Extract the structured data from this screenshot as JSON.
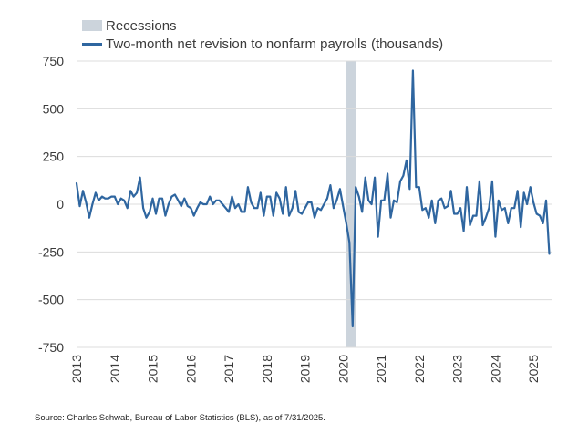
{
  "colors": {
    "series": "#2f66a0",
    "recession": "#ccd4dc",
    "grid": "#dcdcdc",
    "text": "#3b3b3b"
  },
  "source": "Source: Charles Schwab, Bureau of Labor Statistics (BLS), as of 7/31/2025.",
  "chart_data": {
    "type": "line",
    "legend": [
      {
        "name": "Recessions",
        "style": "shaded-band"
      },
      {
        "name": "Two-month net revision to nonfarm payrolls (thousands)",
        "style": "line"
      }
    ],
    "legend_position": "top-left",
    "ylim": [
      -750,
      750
    ],
    "yticks": [
      750,
      500,
      250,
      0,
      -250,
      -500,
      -750
    ],
    "ytick_labels": [
      "750",
      "500",
      "250",
      "0",
      "-250",
      "-500",
      "-750"
    ],
    "xlim": [
      2013,
      2025.5
    ],
    "xticks": [
      2013,
      2014,
      2015,
      2016,
      2017,
      2018,
      2019,
      2020,
      2021,
      2022,
      2023,
      2024,
      2025
    ],
    "xtick_labels": [
      "2013",
      "2014",
      "2015",
      "2016",
      "2017",
      "2018",
      "2019",
      "2020",
      "2021",
      "2022",
      "2023",
      "2024",
      "2025"
    ],
    "grid": "horizontal",
    "recessions": [
      {
        "start": 2020.08,
        "end": 2020.33
      }
    ],
    "series": [
      {
        "name": "Two-month net revision to nonfarm payrolls (thousands)",
        "x": [
          2013.0,
          2013.083,
          2013.167,
          2013.25,
          2013.333,
          2013.417,
          2013.5,
          2013.583,
          2013.667,
          2013.75,
          2013.833,
          2013.917,
          2014.0,
          2014.083,
          2014.167,
          2014.25,
          2014.333,
          2014.417,
          2014.5,
          2014.583,
          2014.667,
          2014.75,
          2014.833,
          2014.917,
          2015.0,
          2015.083,
          2015.167,
          2015.25,
          2015.333,
          2015.417,
          2015.5,
          2015.583,
          2015.667,
          2015.75,
          2015.833,
          2015.917,
          2016.0,
          2016.083,
          2016.167,
          2016.25,
          2016.333,
          2016.417,
          2016.5,
          2016.583,
          2016.667,
          2016.75,
          2016.833,
          2016.917,
          2017.0,
          2017.083,
          2017.167,
          2017.25,
          2017.333,
          2017.417,
          2017.5,
          2017.583,
          2017.667,
          2017.75,
          2017.833,
          2017.917,
          2018.0,
          2018.083,
          2018.167,
          2018.25,
          2018.333,
          2018.417,
          2018.5,
          2018.583,
          2018.667,
          2018.75,
          2018.833,
          2018.917,
          2019.0,
          2019.083,
          2019.167,
          2019.25,
          2019.333,
          2019.417,
          2019.5,
          2019.583,
          2019.667,
          2019.75,
          2019.833,
          2019.917,
          2020.0,
          2020.083,
          2020.167,
          2020.25,
          2020.333,
          2020.417,
          2020.5,
          2020.583,
          2020.667,
          2020.75,
          2020.833,
          2020.917,
          2021.0,
          2021.083,
          2021.167,
          2021.25,
          2021.333,
          2021.417,
          2021.5,
          2021.583,
          2021.667,
          2021.75,
          2021.833,
          2021.917,
          2022.0,
          2022.083,
          2022.167,
          2022.25,
          2022.333,
          2022.417,
          2022.5,
          2022.583,
          2022.667,
          2022.75,
          2022.833,
          2022.917,
          2023.0,
          2023.083,
          2023.167,
          2023.25,
          2023.333,
          2023.417,
          2023.5,
          2023.583,
          2023.667,
          2023.75,
          2023.833,
          2023.917,
          2024.0,
          2024.083,
          2024.167,
          2024.25,
          2024.333,
          2024.417,
          2024.5,
          2024.583,
          2024.667,
          2024.75,
          2024.833,
          2024.917,
          2025.0,
          2025.083,
          2025.167,
          2025.25,
          2025.333,
          2025.417
        ],
        "y": [
          110,
          -10,
          70,
          10,
          -70,
          0,
          60,
          20,
          40,
          30,
          30,
          40,
          40,
          0,
          30,
          20,
          -20,
          70,
          40,
          60,
          140,
          -20,
          -70,
          -40,
          30,
          -50,
          30,
          30,
          -60,
          0,
          40,
          50,
          20,
          -10,
          30,
          -10,
          -20,
          -60,
          -20,
          10,
          0,
          0,
          40,
          0,
          20,
          20,
          0,
          -20,
          -40,
          40,
          -20,
          0,
          -40,
          -40,
          90,
          10,
          -20,
          -20,
          60,
          -60,
          40,
          40,
          -60,
          60,
          30,
          -50,
          90,
          -60,
          -20,
          70,
          -40,
          -50,
          -20,
          10,
          10,
          -70,
          -20,
          -30,
          0,
          30,
          100,
          -20,
          20,
          80,
          -10,
          -100,
          -200,
          -640,
          90,
          40,
          -40,
          140,
          20,
          0,
          140,
          -170,
          20,
          20,
          160,
          -70,
          20,
          10,
          120,
          150,
          230,
          80,
          700,
          90,
          90,
          -30,
          -20,
          -70,
          20,
          -100,
          20,
          30,
          -20,
          -10,
          70,
          -50,
          -50,
          -20,
          -140,
          90,
          -110,
          -60,
          -60,
          120,
          -110,
          -70,
          -20,
          120,
          -170,
          20,
          -30,
          -20,
          -100,
          -20,
          -20,
          70,
          -120,
          60,
          0,
          90,
          10,
          -50,
          -60,
          -100,
          20,
          -260
        ]
      }
    ]
  }
}
